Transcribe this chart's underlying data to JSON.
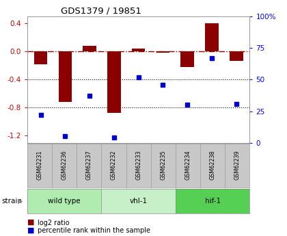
{
  "title": "GDS1379 / 19851",
  "samples": [
    "GSM62231",
    "GSM62236",
    "GSM62237",
    "GSM62232",
    "GSM62233",
    "GSM62235",
    "GSM62234",
    "GSM62238",
    "GSM62239"
  ],
  "log2_ratio": [
    -0.18,
    -0.72,
    0.08,
    -0.87,
    0.04,
    -0.02,
    -0.22,
    0.4,
    -0.13
  ],
  "percentile_rank": [
    22,
    5,
    37,
    4,
    52,
    46,
    30,
    67,
    31
  ],
  "groups": [
    {
      "label": "wild type",
      "indices": [
        0,
        1,
        2
      ],
      "color": "#b0ebb0"
    },
    {
      "label": "vhl-1",
      "indices": [
        3,
        4,
        5
      ],
      "color": "#c8f0c8"
    },
    {
      "label": "hif-1",
      "indices": [
        6,
        7,
        8
      ],
      "color": "#55d055"
    }
  ],
  "ylim_left": [
    -1.3,
    0.5
  ],
  "ylim_right": [
    0,
    100
  ],
  "yticks_left": [
    -1.2,
    -0.8,
    -0.4,
    0.0,
    0.4
  ],
  "yticks_right": [
    0,
    25,
    50,
    75,
    100
  ],
  "dotted_lines": [
    -0.4,
    -0.8
  ],
  "bar_color": "#8b0000",
  "dot_color": "#0000cc",
  "sample_box_color": "#c8c8c8",
  "legend_items": [
    "log2 ratio",
    "percentile rank within the sample"
  ],
  "strain_label": "strain"
}
